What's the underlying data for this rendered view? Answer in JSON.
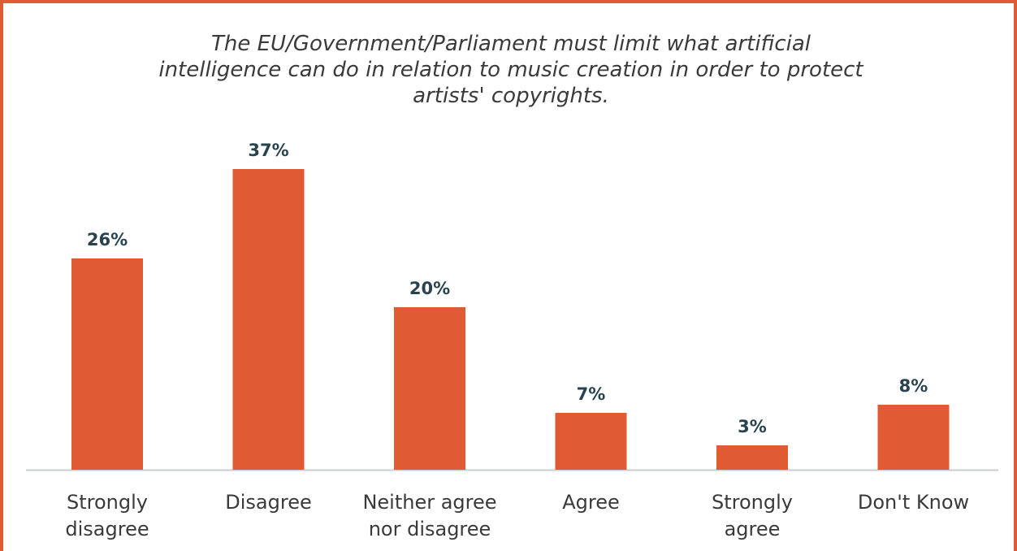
{
  "chart_data": {
    "type": "bar",
    "title": "The EU/Government/Parliament must limit what artificial\nintelligence can do in relation to music creation in order to protect\nartists' copyrights.",
    "categories": [
      [
        "Strongly",
        "disagree"
      ],
      [
        "Disagree"
      ],
      [
        "Neither agree",
        "nor disagree"
      ],
      [
        "Agree"
      ],
      [
        "Strongly",
        "agree"
      ],
      [
        "Don't Know"
      ]
    ],
    "values": [
      26,
      37,
      20,
      7,
      3,
      8
    ],
    "value_labels": [
      "26%",
      "37%",
      "20%",
      "7%",
      "3%",
      "8%"
    ],
    "unit": "%",
    "ylim": [
      0,
      40
    ],
    "grid": false,
    "legend": "none",
    "colors": {
      "bar": "#E05A33",
      "value_label": "#28434F",
      "axis": "#C8CCD0",
      "border": "#E05A33"
    }
  }
}
